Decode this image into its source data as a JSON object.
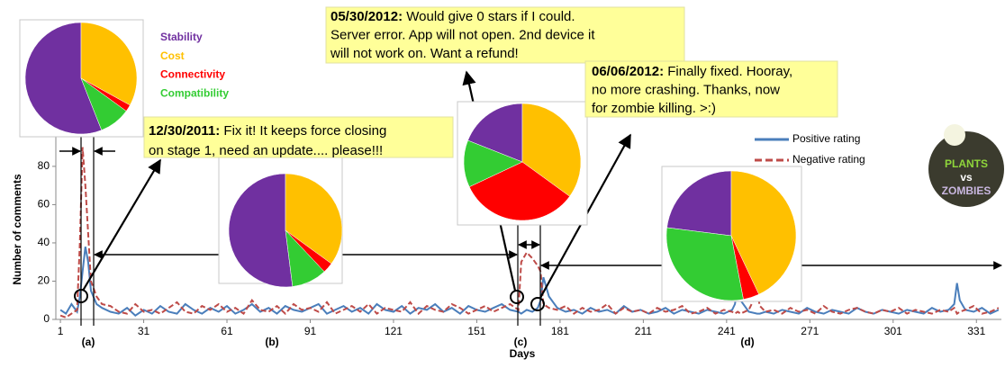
{
  "chart_data": [
    {
      "type": "line",
      "y_label": "Number of comments",
      "x_label": "Days",
      "xlim": [
        0,
        340
      ],
      "ylim": [
        0,
        95
      ],
      "xticks": [
        1,
        31,
        61,
        91,
        121,
        151,
        181,
        211,
        241,
        271,
        301,
        331
      ],
      "yticks": [
        0,
        20,
        40,
        60,
        80
      ],
      "x": [
        1,
        3,
        5,
        7,
        8,
        9,
        10,
        11,
        12,
        14,
        16,
        19,
        22,
        25,
        28,
        31,
        34,
        37,
        40,
        43,
        46,
        49,
        52,
        55,
        58,
        61,
        64,
        67,
        70,
        73,
        76,
        79,
        82,
        85,
        88,
        91,
        94,
        97,
        100,
        103,
        106,
        109,
        112,
        115,
        118,
        121,
        124,
        127,
        130,
        133,
        136,
        139,
        142,
        145,
        148,
        151,
        154,
        157,
        160,
        163,
        166,
        167,
        169,
        171,
        173,
        174,
        175,
        177,
        180,
        183,
        186,
        189,
        192,
        195,
        198,
        201,
        204,
        207,
        210,
        213,
        216,
        219,
        222,
        225,
        228,
        231,
        234,
        237,
        240,
        243,
        244,
        245,
        246,
        249,
        252,
        253,
        255,
        258,
        261,
        264,
        267,
        270,
        273,
        276,
        279,
        282,
        285,
        288,
        291,
        294,
        297,
        300,
        303,
        306,
        309,
        312,
        315,
        318,
        321,
        323,
        324,
        325,
        327,
        330,
        333,
        336,
        339
      ],
      "series": [
        {
          "name": "Positive rating",
          "color": "#4a7ebb",
          "style": "solid",
          "values": [
            5,
            3,
            8,
            4,
            12,
            25,
            38,
            30,
            15,
            8,
            6,
            4,
            3,
            6,
            2,
            5,
            3,
            7,
            4,
            3,
            8,
            5,
            3,
            6,
            4,
            7,
            3,
            5,
            8,
            4,
            6,
            3,
            7,
            5,
            4,
            6,
            8,
            3,
            5,
            7,
            4,
            6,
            3,
            8,
            5,
            4,
            7,
            3,
            6,
            5,
            8,
            4,
            6,
            3,
            7,
            5,
            4,
            6,
            8,
            5,
            4,
            3,
            5,
            4,
            6,
            10,
            22,
            12,
            6,
            4,
            5,
            3,
            6,
            4,
            5,
            3,
            7,
            4,
            5,
            3,
            4,
            6,
            3,
            5,
            4,
            3,
            5,
            4,
            3,
            5,
            8,
            17,
            10,
            4,
            3,
            3,
            4,
            3,
            5,
            4,
            3,
            6,
            4,
            3,
            5,
            4,
            3,
            6,
            4,
            3,
            5,
            4,
            3,
            5,
            4,
            3,
            6,
            4,
            5,
            8,
            19,
            10,
            5,
            4,
            6,
            3,
            5
          ]
        },
        {
          "name": "Negative rating",
          "color": "#be4b48",
          "style": "dashed",
          "values": [
            2,
            1,
            3,
            5,
            40,
            90,
            70,
            45,
            20,
            12,
            8,
            7,
            4,
            3,
            8,
            4,
            5,
            3,
            6,
            9,
            4,
            3,
            7,
            5,
            8,
            4,
            6,
            3,
            10,
            5,
            4,
            7,
            3,
            8,
            5,
            6,
            4,
            9,
            3,
            5,
            7,
            4,
            8,
            3,
            6,
            5,
            4,
            9,
            3,
            7,
            5,
            4,
            8,
            6,
            3,
            5,
            7,
            4,
            6,
            8,
            5,
            30,
            35,
            32,
            28,
            25,
            8,
            6,
            5,
            7,
            3,
            6,
            4,
            5,
            8,
            3,
            6,
            4,
            5,
            3,
            6,
            4,
            5,
            7,
            3,
            4,
            6,
            3,
            5,
            4,
            3,
            4,
            3,
            5,
            14,
            7,
            4,
            5,
            3,
            6,
            4,
            5,
            3,
            7,
            4,
            3,
            5,
            6,
            4,
            3,
            5,
            4,
            6,
            3,
            5,
            4,
            3,
            5,
            4,
            6,
            3,
            4,
            5,
            7,
            3,
            4,
            6
          ]
        }
      ],
      "annotations": [
        {
          "date": "12/30/2011:",
          "lines": [
            "   Fix it! It keeps force closing",
            "on stage 1, need an update.... please!!!"
          ]
        },
        {
          "date": "05/30/2012:",
          "lines": [
            " Would give 0 stars if I could.",
            "Server error. App will not open. 2nd device it",
            "will not work on.  Want a refund!"
          ]
        },
        {
          "date": "06/06/2012:",
          "lines": [
            " Finally fixed. Hooray,",
            "no more crashing. Thanks, now",
            "for zombie killing. >:)"
          ]
        }
      ],
      "logo": [
        "PLANTS",
        "vs",
        "ZOMBIES"
      ]
    },
    {
      "type": "pie",
      "label": "(a)",
      "categories": [
        "Stability",
        "Cost",
        "Connectivity",
        "Compatibility"
      ],
      "colors": [
        "#7030a0",
        "#ffc000",
        "#ff0000",
        "#33cc33"
      ],
      "values": [
        56,
        33,
        2,
        9
      ]
    },
    {
      "type": "pie",
      "label": "(b)",
      "values": [
        52,
        35,
        3,
        10
      ]
    },
    {
      "type": "pie",
      "label": "(c)",
      "values": [
        19,
        35,
        33,
        13
      ]
    },
    {
      "type": "pie",
      "label": "(d)",
      "values": [
        23,
        43,
        4,
        30
      ]
    }
  ]
}
